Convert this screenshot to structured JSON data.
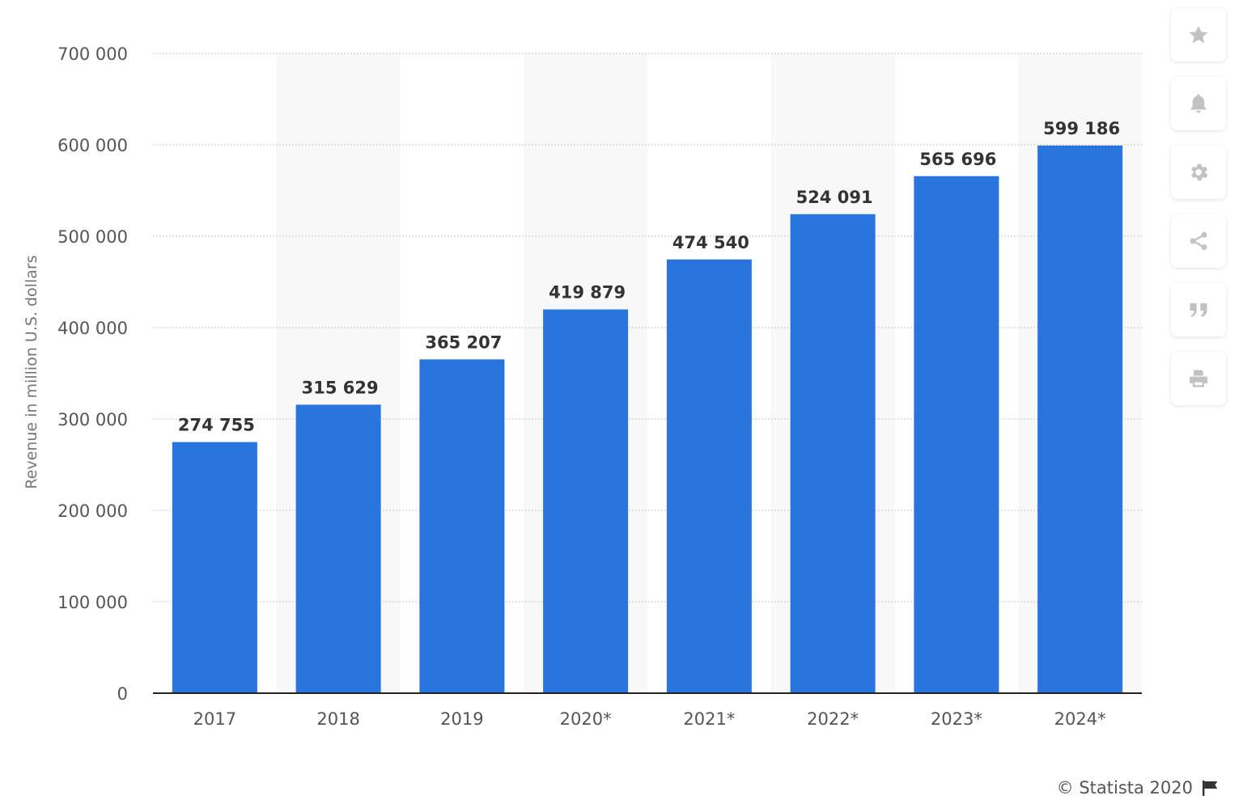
{
  "chart_data": {
    "type": "bar",
    "categories": [
      "2017",
      "2018",
      "2019",
      "2020*",
      "2021*",
      "2022*",
      "2023*",
      "2024*"
    ],
    "values": [
      274755,
      315629,
      365207,
      419879,
      474540,
      524091,
      565696,
      599186
    ],
    "value_labels": [
      "274 755",
      "315 629",
      "365 207",
      "419 879",
      "474 540",
      "524 091",
      "565 696",
      "599 186"
    ],
    "ylabel": "Revenue in million U.S. dollars",
    "ylim": [
      0,
      700000
    ],
    "yticks": [
      0,
      100000,
      200000,
      300000,
      400000,
      500000,
      600000,
      700000
    ],
    "ytick_labels": [
      "0",
      "100 000",
      "200 000",
      "300 000",
      "400 000",
      "500 000",
      "600 000",
      "700 000"
    ],
    "grid": true,
    "bar_color": "#2876dd"
  },
  "toolbar": {
    "icons": [
      "star-icon",
      "bell-icon",
      "gear-icon",
      "share-icon",
      "quote-icon",
      "print-icon"
    ]
  },
  "credit": {
    "text": "© Statista 2020"
  }
}
